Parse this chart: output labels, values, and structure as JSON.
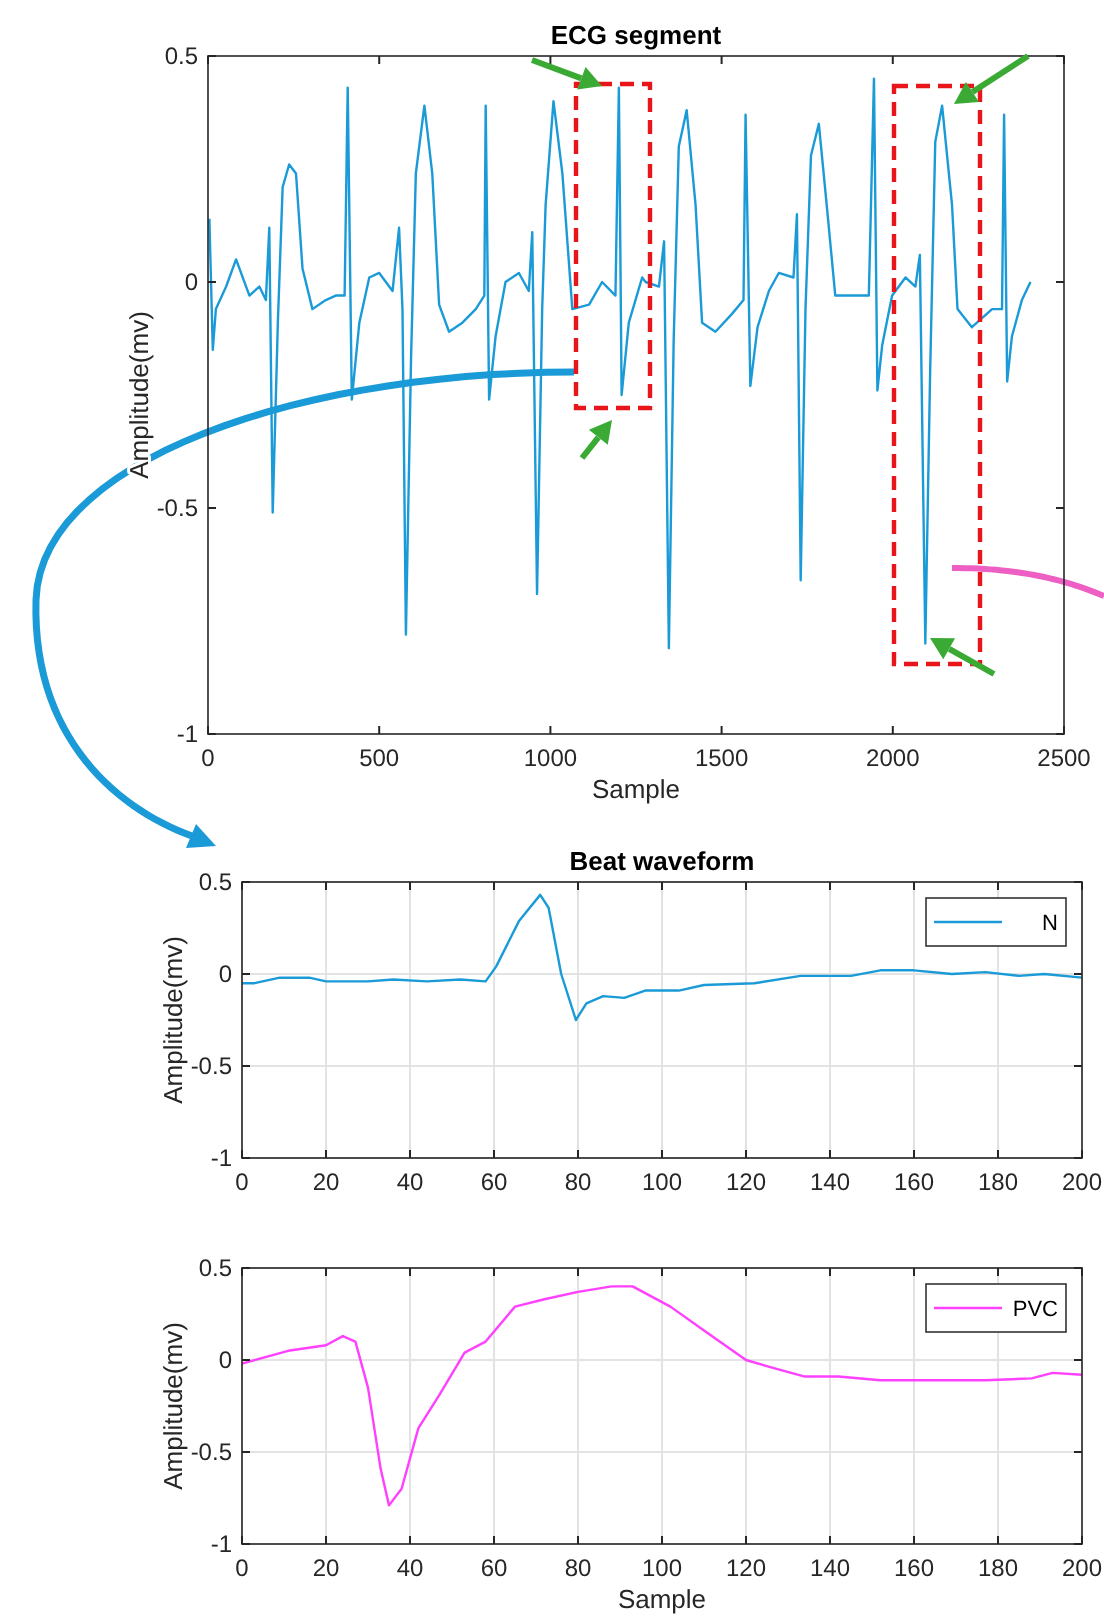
{
  "chart_data": [
    {
      "type": "line",
      "title": "ECG segment",
      "xlabel": "Sample",
      "ylabel": "Amplitude(mv)",
      "xlim": [
        0,
        2500
      ],
      "ylim": [
        -1,
        0.5
      ],
      "xticks": [
        0,
        500,
        1000,
        1500,
        2000,
        2500
      ],
      "yticks": [
        -1,
        -0.5,
        0,
        0.5
      ],
      "grid": false,
      "x": [
        4,
        14,
        23,
        53,
        82,
        121,
        150,
        169,
        179,
        189,
        204,
        218,
        237,
        257,
        276,
        305,
        344,
        373,
        399,
        408,
        420,
        442,
        471,
        500,
        539,
        558,
        568,
        578,
        593,
        607,
        632,
        655,
        675,
        704,
        743,
        782,
        807,
        811,
        821,
        840,
        869,
        908,
        937,
        947,
        961,
        976,
        986,
        1009,
        1035,
        1064,
        1113,
        1151,
        1190,
        1200,
        1208,
        1229,
        1268,
        1278,
        1317,
        1332,
        1346,
        1360,
        1375,
        1398,
        1424,
        1443,
        1482,
        1531,
        1564,
        1570,
        1584,
        1605,
        1638,
        1667,
        1710,
        1720,
        1731,
        1745,
        1761,
        1784,
        1807,
        1832,
        1881,
        1930,
        1945,
        1955,
        1969,
        1998,
        2037,
        2066,
        2079,
        2095,
        2109,
        2124,
        2144,
        2173,
        2189,
        2231,
        2290,
        2319,
        2325,
        2334,
        2348,
        2377,
        2402
      ],
      "series": [
        {
          "color": "#1a9bd7",
          "values": [
            0.14,
            -0.15,
            -0.06,
            -0.01,
            0.05,
            -0.03,
            -0.01,
            -0.04,
            0.12,
            -0.51,
            -0.09,
            0.21,
            0.26,
            0.24,
            0.03,
            -0.06,
            -0.04,
            -0.03,
            -0.03,
            0.43,
            -0.26,
            -0.09,
            0.01,
            0.02,
            -0.02,
            0.12,
            -0.06,
            -0.78,
            -0.17,
            0.24,
            0.39,
            0.24,
            -0.05,
            -0.11,
            -0.09,
            -0.06,
            -0.03,
            0.39,
            -0.26,
            -0.12,
            0,
            0.02,
            -0.02,
            0.11,
            -0.69,
            -0.06,
            0.17,
            0.4,
            0.24,
            -0.06,
            -0.05,
            0,
            -0.03,
            0.43,
            -0.25,
            -0.09,
            0.01,
            0,
            -0.01,
            0.09,
            -0.81,
            -0.13,
            0.3,
            0.38,
            0.17,
            -0.09,
            -0.11,
            -0.07,
            -0.04,
            0.37,
            -0.23,
            -0.1,
            -0.02,
            0.02,
            0.01,
            0.15,
            -0.66,
            -0.06,
            0.28,
            0.35,
            0.17,
            -0.03,
            -0.03,
            -0.03,
            0.45,
            -0.24,
            -0.14,
            -0.03,
            0.01,
            -0.01,
            0.06,
            -0.8,
            -0.2,
            0.31,
            0.39,
            0.17,
            -0.06,
            -0.1,
            -0.06,
            -0.06,
            0.37,
            -0.22,
            -0.12,
            -0.04,
            0
          ]
        }
      ]
    },
    {
      "type": "line",
      "title": "Beat waveform",
      "ylabel": "Amplitude(mv)",
      "xlim": [
        0,
        200
      ],
      "ylim": [
        -1,
        0.5
      ],
      "xticks": [
        0,
        20,
        40,
        60,
        80,
        100,
        120,
        140,
        160,
        180,
        200
      ],
      "yticks": [
        -1,
        -0.5,
        0,
        0.5
      ],
      "grid": true,
      "legend": "top right",
      "x": [
        0,
        3,
        9,
        16,
        20,
        30,
        36,
        44,
        52,
        58,
        60.5,
        66,
        71,
        73,
        76,
        79.5,
        82,
        86,
        91,
        96,
        104,
        110,
        122,
        133,
        145,
        152,
        160,
        169,
        177,
        185,
        191,
        200
      ],
      "series": [
        {
          "name": "N",
          "color": "#1a9bd7",
          "values": [
            -0.05,
            -0.05,
            -0.02,
            -0.02,
            -0.04,
            -0.04,
            -0.03,
            -0.04,
            -0.03,
            -0.04,
            0.04,
            0.29,
            0.43,
            0.36,
            0,
            -0.25,
            -0.16,
            -0.12,
            -0.13,
            -0.09,
            -0.09,
            -0.06,
            -0.05,
            -0.01,
            -0.01,
            0.02,
            0.02,
            0,
            0.01,
            -0.01,
            0,
            -0.02
          ]
        }
      ]
    },
    {
      "type": "line",
      "xlabel": "Sample",
      "ylabel": "Amplitude(mv)",
      "xlim": [
        0,
        200
      ],
      "ylim": [
        -1,
        0.5
      ],
      "xticks": [
        0,
        20,
        40,
        60,
        80,
        100,
        120,
        140,
        160,
        180,
        200
      ],
      "yticks": [
        -1,
        -0.5,
        0,
        0.5
      ],
      "grid": true,
      "legend": "top right",
      "x": [
        0,
        11,
        20,
        24,
        27,
        30,
        33,
        35,
        38,
        42,
        47,
        53,
        58,
        65,
        72,
        80,
        88,
        93,
        102,
        110,
        120,
        126,
        134,
        142,
        152,
        164,
        177,
        188,
        193,
        200
      ],
      "series": [
        {
          "name": "PVC",
          "color": "#ff40ff",
          "values": [
            -0.02,
            0.05,
            0.08,
            0.13,
            0.1,
            -0.15,
            -0.59,
            -0.79,
            -0.7,
            -0.37,
            -0.19,
            0.04,
            0.1,
            0.29,
            0.33,
            0.37,
            0.4,
            0.4,
            0.29,
            0.16,
            0,
            -0.04,
            -0.09,
            -0.09,
            -0.11,
            -0.11,
            -0.11,
            -0.1,
            -0.07,
            -0.08
          ]
        }
      ]
    }
  ]
}
